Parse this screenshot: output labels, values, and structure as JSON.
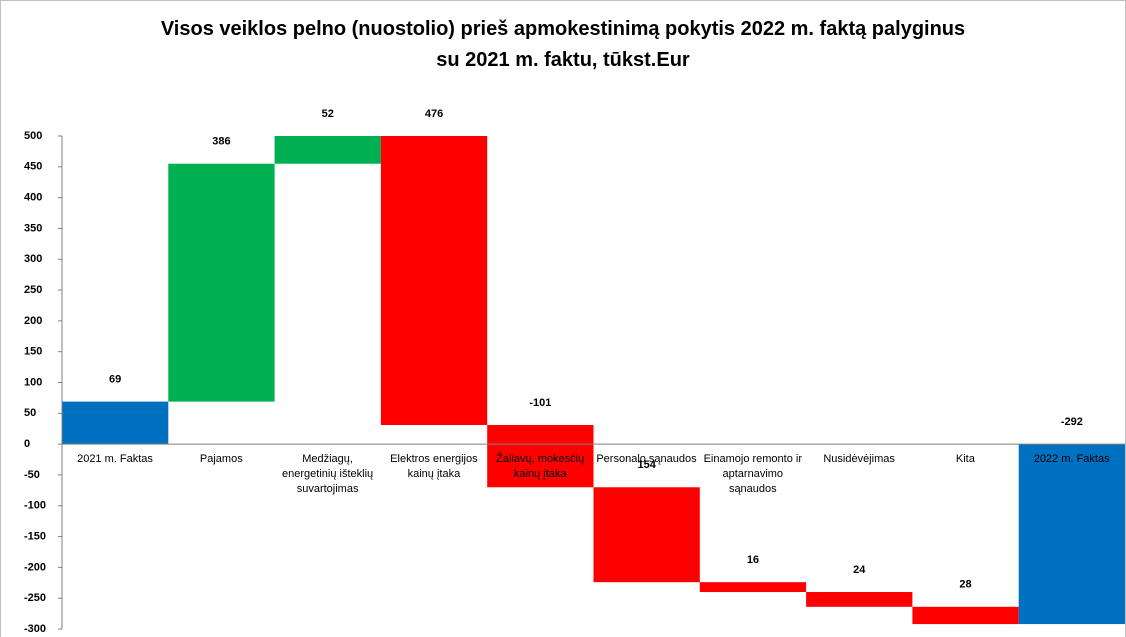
{
  "chart_data": {
    "type": "waterfall",
    "title": "Visos veiklos pelno (nuostolio) prieš apmokestinimą  pokytis 2022 m. faktą palyginus su 2021 m. faktu, tūkst.Eur",
    "categories": [
      "2021 m. Faktas",
      "Pajamos",
      "Medžiagų, energetinių išteklių suvartojimas",
      "Elektros energijos kainų įtaka",
      "Žaliavų, mokesčių kainų įtaka",
      "Personalo sąnaudos",
      "Einamojo remonto ir aptarnavimo sąnaudos",
      "Nusidėvėjimas",
      "Kita",
      "2022 m. Faktas"
    ],
    "values": [
      69,
      386,
      52,
      -476,
      -101,
      -154,
      -16,
      -24,
      -28,
      -292
    ],
    "value_labels": [
      "69",
      "386",
      "52",
      "476",
      "-101",
      "154",
      "16",
      "24",
      "28",
      "-292"
    ],
    "measure": [
      "absolute",
      "relative",
      "relative",
      "relative",
      "relative",
      "relative",
      "relative",
      "relative",
      "relative",
      "absolute"
    ],
    "colors": {
      "absolute": "#0070c0",
      "increase": "#00b050",
      "decrease": "#ff0000"
    },
    "ylim": [
      -300,
      500
    ],
    "yticks": [
      -300,
      -250,
      -200,
      -150,
      -100,
      -50,
      0,
      50,
      100,
      150,
      200,
      250,
      300,
      350,
      400,
      450,
      500
    ],
    "grid": false
  }
}
